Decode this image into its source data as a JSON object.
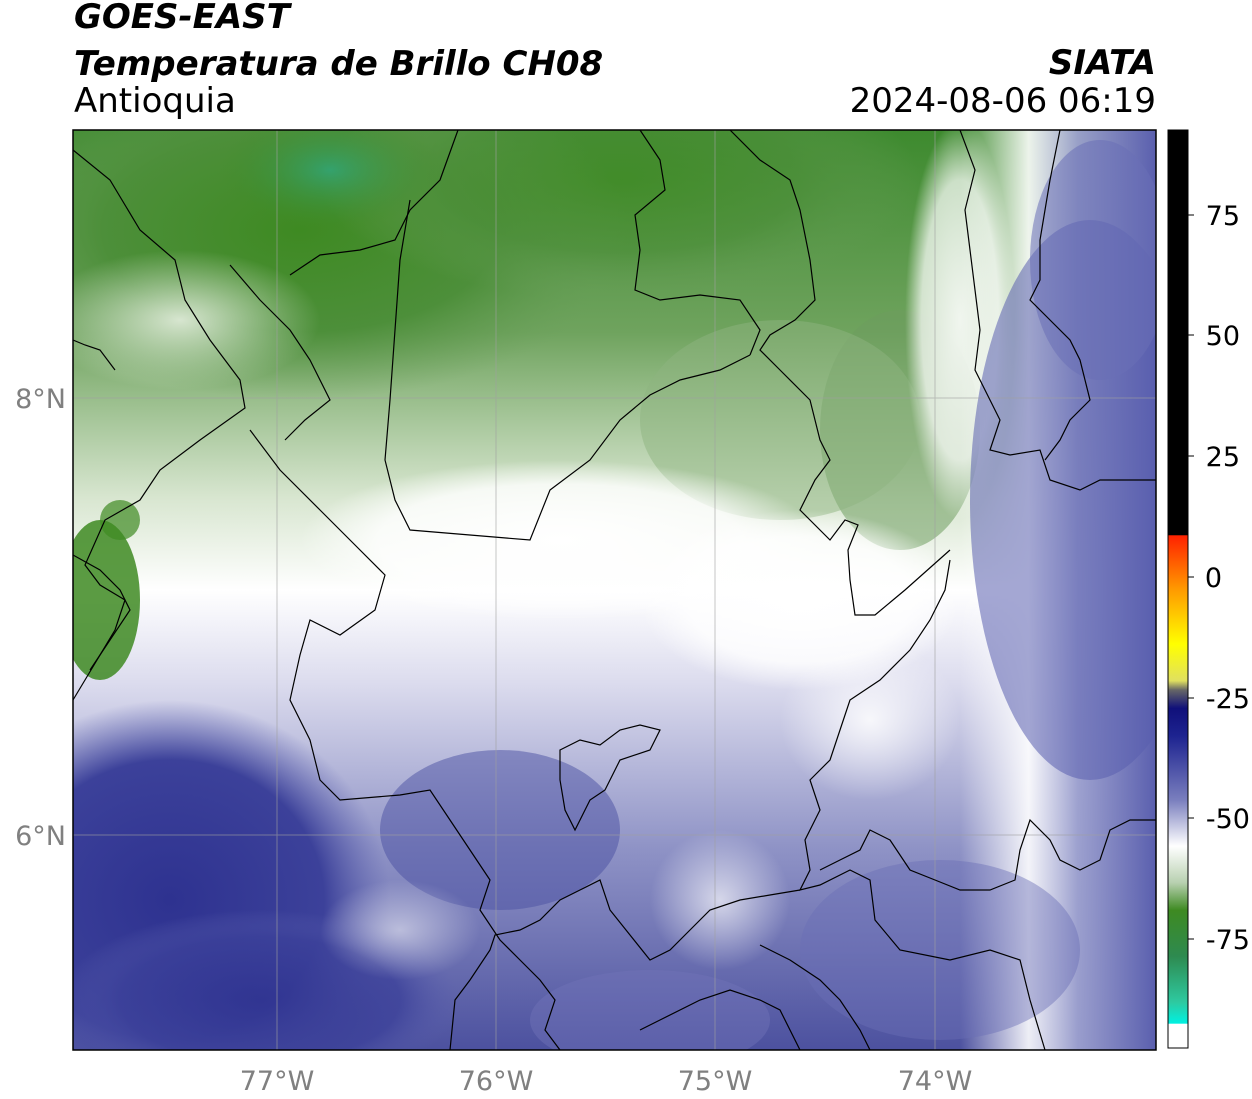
{
  "header": {
    "satellite": "GOES-EAST",
    "product": "Temperatura de Brillo CH08",
    "region": "Antioquia",
    "institution": "SIATA",
    "datetime": "2024-08-06 06:19"
  },
  "map": {
    "lon_ticks": [
      "77°W",
      "76°W",
      "75°W",
      "74°W"
    ],
    "lat_ticks": [
      "8°N",
      "6°N"
    ],
    "gridlines": true
  },
  "colorbar": {
    "ticks": [
      "75",
      "50",
      "25",
      "0",
      "-25",
      "-50",
      "-75"
    ],
    "colors": {
      "black": "#000000",
      "red": "#ff2200",
      "orange": "#ff9900",
      "yellow": "#ffff00",
      "navy": "#10107a",
      "blue_gray": "#7a7fbe",
      "white": "#ffffff",
      "green": "#3e8a22",
      "teal": "#2ec9a0",
      "cyan": "#00f0e0"
    }
  }
}
